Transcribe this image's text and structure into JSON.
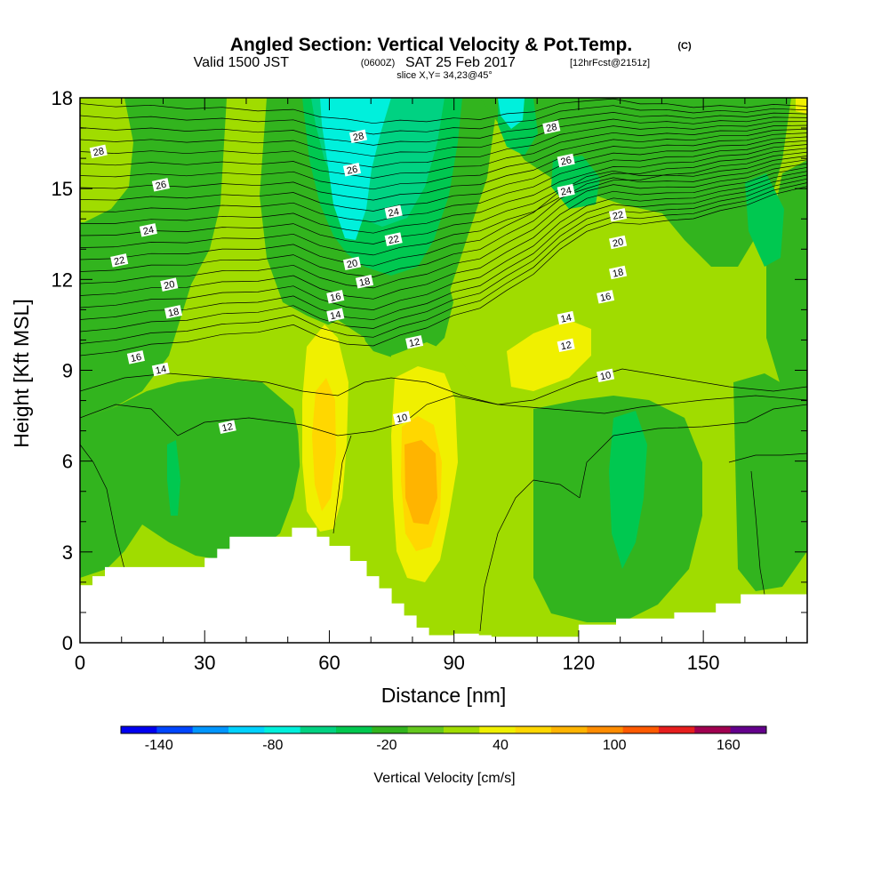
{
  "header": {
    "title": "Angled Section: Vertical Velocity & Pot.Temp.",
    "title_unit": "(C)",
    "valid_prefix": "Valid 1500 JST",
    "valid_utc": "(0600Z)",
    "valid_date": "SAT 25 Feb 2017",
    "forecast": "[12hrFcst@2151z]",
    "slice": "slice X,Y= 34,23@45°"
  },
  "chart_data": {
    "type": "heatmap",
    "xlabel": "Distance [nm]",
    "ylabel": "Height [Kft MSL]",
    "xlim": [
      0,
      175
    ],
    "ylim": [
      0,
      18
    ],
    "xticks": [
      0,
      30,
      60,
      90,
      120,
      150
    ],
    "yticks": [
      0,
      3,
      6,
      9,
      12,
      15,
      18
    ],
    "colorbar": {
      "label": "Vertical Velocity [cm/s]",
      "tick_labels": [
        "-140",
        "-80",
        "-20",
        "40",
        "100",
        "160"
      ],
      "tick_values": [
        -140,
        -80,
        -20,
        40,
        100,
        160
      ],
      "levels": [
        -160,
        -140,
        -120,
        -100,
        -80,
        -60,
        -40,
        -20,
        0,
        20,
        40,
        60,
        80,
        100,
        120,
        140,
        160,
        180
      ],
      "colors": [
        "#0000f0",
        "#0046ff",
        "#0096ff",
        "#00d2ff",
        "#00f0dc",
        "#00d282",
        "#00c850",
        "#32b41e",
        "#64c81e",
        "#a0dc00",
        "#f0f000",
        "#ffd700",
        "#ffb400",
        "#ff8c00",
        "#ff5a00",
        "#e61e1e",
        "#a00050",
        "#64008c"
      ]
    },
    "field_colors": {
      "w_m20_0": "#32b41e",
      "w_m40_m20": "#00c850",
      "w_m60_m40": "#00d282",
      "w_m80_m60": "#00f0dc",
      "w_0_20": "#64c81e",
      "w_20_40": "#a0dc00",
      "w_40_60": "#f0f000",
      "w_60_80": "#ffd700",
      "w_80_100": "#ffb400"
    },
    "terrain": {
      "x": [
        0,
        3,
        3,
        6,
        6,
        10,
        10,
        30,
        30,
        33,
        33,
        36,
        36,
        51,
        51,
        57,
        57,
        60,
        60,
        65,
        65,
        69,
        69,
        72,
        72,
        75,
        75,
        78,
        78,
        81,
        81,
        84,
        84,
        90,
        90,
        96,
        96,
        99,
        99,
        120,
        120,
        129,
        129,
        143,
        143,
        153,
        153,
        159,
        159,
        175
      ],
      "y": [
        1.9,
        1.9,
        2.2,
        2.2,
        2.5,
        2.5,
        2.5,
        2.5,
        2.8,
        2.8,
        3.1,
        3.1,
        3.5,
        3.5,
        3.8,
        3.8,
        3.5,
        3.5,
        3.2,
        3.2,
        2.7,
        2.7,
        2.2,
        2.2,
        1.8,
        1.8,
        1.3,
        1.3,
        0.9,
        0.9,
        0.5,
        0.5,
        0.25,
        0.25,
        0.3,
        0.3,
        0.25,
        0.25,
        0.2,
        0.2,
        0.6,
        0.6,
        0.8,
        0.8,
        1.0,
        1.0,
        1.3,
        1.3,
        1.6,
        1.6
      ]
    },
    "isentropes": {
      "labels": [
        {
          "text": "28",
          "x": 4.5,
          "y": 16.2
        },
        {
          "text": "26",
          "x": 19.5,
          "y": 15.1
        },
        {
          "text": "24",
          "x": 16.5,
          "y": 13.6
        },
        {
          "text": "22",
          "x": 9.5,
          "y": 12.6
        },
        {
          "text": "20",
          "x": 21.5,
          "y": 11.8
        },
        {
          "text": "18",
          "x": 22.5,
          "y": 10.9
        },
        {
          "text": "16",
          "x": 13.5,
          "y": 9.4
        },
        {
          "text": "14",
          "x": 19.5,
          "y": 9.0
        },
        {
          "text": "12",
          "x": 35.5,
          "y": 7.1
        },
        {
          "text": "28",
          "x": 67.0,
          "y": 16.7
        },
        {
          "text": "26",
          "x": 65.5,
          "y": 15.6
        },
        {
          "text": "24",
          "x": 75.5,
          "y": 14.2
        },
        {
          "text": "22",
          "x": 75.5,
          "y": 13.3
        },
        {
          "text": "20",
          "x": 65.5,
          "y": 12.5
        },
        {
          "text": "18",
          "x": 68.5,
          "y": 11.9
        },
        {
          "text": "16",
          "x": 61.5,
          "y": 11.4
        },
        {
          "text": "14",
          "x": 61.5,
          "y": 10.8
        },
        {
          "text": "12",
          "x": 80.5,
          "y": 9.9
        },
        {
          "text": "10",
          "x": 77.5,
          "y": 7.4
        },
        {
          "text": "28",
          "x": 113.5,
          "y": 17.0
        },
        {
          "text": "26",
          "x": 117.0,
          "y": 15.9
        },
        {
          "text": "24",
          "x": 117.0,
          "y": 14.9
        },
        {
          "text": "22",
          "x": 129.5,
          "y": 14.1
        },
        {
          "text": "20",
          "x": 129.5,
          "y": 13.2
        },
        {
          "text": "18",
          "x": 129.5,
          "y": 12.2
        },
        {
          "text": "16",
          "x": 126.5,
          "y": 11.4
        },
        {
          "text": "14",
          "x": 117.0,
          "y": 10.7
        },
        {
          "text": "12",
          "x": 117.0,
          "y": 9.8
        },
        {
          "text": "10",
          "x": 126.5,
          "y": 8.8
        }
      ]
    }
  }
}
